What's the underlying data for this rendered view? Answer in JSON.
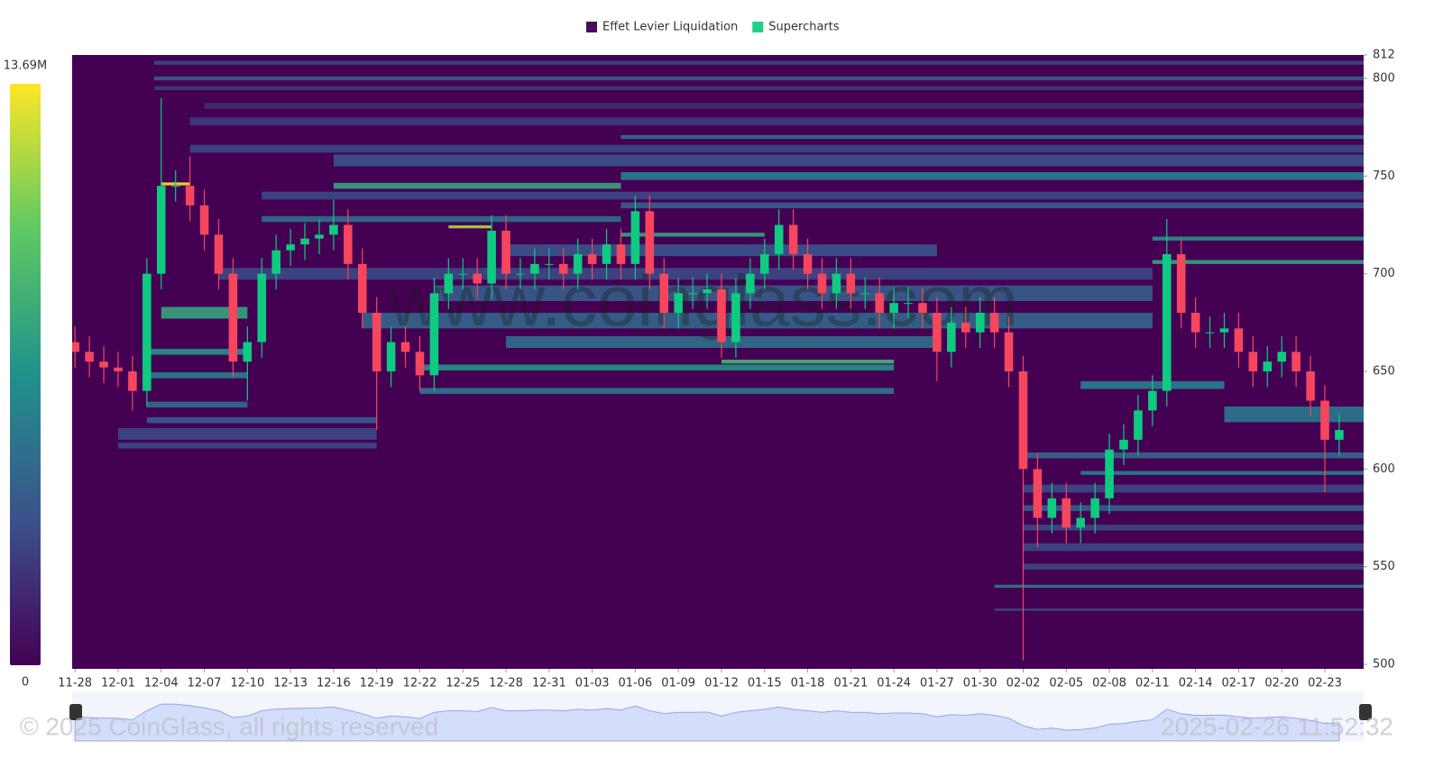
{
  "chart_data": {
    "type": "liquidation-heatmap",
    "legend": [
      {
        "name": "Effet Levier Liquidation",
        "color": "#4a0e5c"
      },
      {
        "name": "Supercharts",
        "color": "#1fcf8a"
      }
    ],
    "colorbar": {
      "max": {
        "value": 13690000,
        "label": "13.69M"
      },
      "min": 0
    },
    "colormap": [
      "#440154",
      "#3b528b",
      "#21918c",
      "#5ec962",
      "#fde725"
    ],
    "background": "#440154",
    "xlim": [
      -0.2,
      89.7
    ],
    "xticks": [
      {
        "value": 0,
        "label": "11-28"
      },
      {
        "value": 3,
        "label": "12-01"
      },
      {
        "value": 6,
        "label": "12-04"
      },
      {
        "value": 9,
        "label": "12-07"
      },
      {
        "value": 12,
        "label": "12-10"
      },
      {
        "value": 15,
        "label": "12-13"
      },
      {
        "value": 18,
        "label": "12-16"
      },
      {
        "value": 21,
        "label": "12-19"
      },
      {
        "value": 24,
        "label": "12-22"
      },
      {
        "value": 27,
        "label": "12-25"
      },
      {
        "value": 30,
        "label": "12-28"
      },
      {
        "value": 33,
        "label": "12-31"
      },
      {
        "value": 36,
        "label": "01-03"
      },
      {
        "value": 39,
        "label": "01-06"
      },
      {
        "value": 42,
        "label": "01-09"
      },
      {
        "value": 45,
        "label": "01-12"
      },
      {
        "value": 48,
        "label": "01-15"
      },
      {
        "value": 51,
        "label": "01-18"
      },
      {
        "value": 54,
        "label": "01-21"
      },
      {
        "value": 57,
        "label": "01-24"
      },
      {
        "value": 60,
        "label": "01-27"
      },
      {
        "value": 63,
        "label": "01-30"
      },
      {
        "value": 66,
        "label": "02-02"
      },
      {
        "value": 69,
        "label": "02-05"
      },
      {
        "value": 72,
        "label": "02-08"
      },
      {
        "value": 75,
        "label": "02-11"
      },
      {
        "value": 78,
        "label": "02-14"
      },
      {
        "value": 81,
        "label": "02-17"
      },
      {
        "value": 84,
        "label": "02-20"
      },
      {
        "value": 87,
        "label": "02-23"
      }
    ],
    "ylim": [
      497.7,
      812
    ],
    "yticks": [
      500,
      550,
      600,
      650,
      700,
      750,
      800,
      812
    ],
    "levels": [
      [
        808,
        2,
        5.5,
        89.7,
        3000000
      ],
      [
        800,
        2,
        5.5,
        89.7,
        4000000
      ],
      [
        795,
        2,
        5.5,
        89.7,
        2500000
      ],
      [
        786,
        3,
        9,
        89.7,
        2000000
      ],
      [
        778,
        4,
        8,
        89.7,
        2500000
      ],
      [
        770,
        2,
        38,
        89.7,
        5000000
      ],
      [
        764,
        4,
        8,
        89.7,
        3000000
      ],
      [
        758,
        6,
        18,
        89.7,
        3500000
      ],
      [
        750,
        4,
        38,
        89.7,
        6000000
      ],
      [
        745,
        3,
        18,
        38,
        8000000
      ],
      [
        746,
        1.5,
        6,
        8,
        13690000
      ],
      [
        740,
        4,
        13,
        89.7,
        3000000
      ],
      [
        735,
        3,
        38,
        89.7,
        4000000
      ],
      [
        728,
        3,
        13,
        38,
        5000000
      ],
      [
        724,
        1.5,
        26,
        29,
        12000000
      ],
      [
        720,
        2,
        38,
        48,
        8000000
      ],
      [
        718,
        2,
        75,
        89.7,
        7000000
      ],
      [
        712,
        6,
        30,
        60,
        3500000
      ],
      [
        706,
        2,
        75,
        89.7,
        8000000
      ],
      [
        700,
        6,
        10,
        75,
        3000000
      ],
      [
        690,
        8,
        25,
        75,
        4000000
      ],
      [
        680,
        6,
        6,
        12,
        8000000
      ],
      [
        676,
        8,
        20,
        75,
        4500000
      ],
      [
        665,
        6,
        30,
        60,
        5000000
      ],
      [
        660,
        3,
        5,
        12,
        7000000
      ],
      [
        655,
        2,
        45,
        57,
        9000000
      ],
      [
        652,
        3,
        24,
        57,
        7000000
      ],
      [
        648,
        3,
        5,
        12,
        6000000
      ],
      [
        643,
        4,
        70,
        80,
        6000000
      ],
      [
        640,
        3,
        24,
        57,
        5500000
      ],
      [
        633,
        3,
        5,
        12,
        5000000
      ],
      [
        628,
        8,
        80,
        89.7,
        5500000
      ],
      [
        625,
        3,
        5,
        21,
        4000000
      ],
      [
        618,
        6,
        3,
        21,
        3000000
      ],
      [
        612,
        3,
        3,
        21,
        3000000
      ],
      [
        607,
        3,
        66,
        89.7,
        4500000
      ],
      [
        598,
        2,
        70,
        89.7,
        6000000
      ],
      [
        590,
        4,
        66,
        89.7,
        3000000
      ],
      [
        580,
        3,
        66,
        89.7,
        4000000
      ],
      [
        570,
        3,
        66,
        89.7,
        3000000
      ],
      [
        560,
        4,
        66,
        89.7,
        3000000
      ],
      [
        550,
        3,
        66,
        89.7,
        3000000
      ],
      [
        540,
        1.5,
        64,
        89.7,
        6000000
      ],
      [
        528,
        1,
        64,
        89.7,
        3500000
      ]
    ],
    "up_color": "#0ecb81",
    "down_color": "#f6465d",
    "candles": {
      "x": [
        0,
        1,
        2,
        3,
        4,
        5,
        6,
        7,
        8,
        9,
        10,
        11,
        12,
        13,
        14,
        15,
        16,
        17,
        18,
        19,
        20,
        21,
        22,
        23,
        24,
        25,
        26,
        27,
        28,
        29,
        30,
        31,
        32,
        33,
        34,
        35,
        36,
        37,
        38,
        39,
        40,
        41,
        42,
        43,
        44,
        45,
        46,
        47,
        48,
        49,
        50,
        51,
        52,
        53,
        54,
        55,
        56,
        57,
        58,
        59,
        60,
        61,
        62,
        63,
        64,
        65,
        66,
        67,
        68,
        69,
        70,
        71,
        72,
        73,
        74,
        75,
        76,
        77,
        78,
        79,
        80,
        81,
        82,
        83,
        84,
        85,
        86,
        87,
        88
      ],
      "open": [
        665,
        660,
        655,
        652,
        650,
        640,
        700,
        745,
        745,
        735,
        720,
        700,
        655,
        665,
        700,
        712,
        715,
        718,
        720,
        725,
        705,
        680,
        650,
        665,
        660,
        648,
        690,
        700,
        700,
        695,
        722,
        700,
        700,
        705,
        705,
        700,
        710,
        705,
        715,
        705,
        732,
        700,
        680,
        690,
        690,
        692,
        665,
        690,
        700,
        710,
        725,
        710,
        700,
        690,
        700,
        690,
        690,
        680,
        685,
        685,
        680,
        660,
        675,
        670,
        680,
        670,
        650,
        600,
        575,
        585,
        570,
        575,
        585,
        610,
        615,
        630,
        640,
        710,
        680,
        670,
        670,
        672,
        660,
        650,
        655,
        660,
        650,
        635,
        615
      ],
      "high": [
        673,
        668,
        663,
        660,
        658,
        708,
        790,
        753,
        760,
        743,
        728,
        708,
        673,
        708,
        720,
        723,
        726,
        728,
        738,
        733,
        713,
        688,
        673,
        673,
        668,
        698,
        708,
        708,
        708,
        730,
        730,
        708,
        713,
        713,
        713,
        718,
        718,
        723,
        723,
        740,
        740,
        708,
        698,
        698,
        700,
        700,
        698,
        708,
        718,
        733,
        733,
        718,
        708,
        708,
        708,
        698,
        698,
        693,
        693,
        693,
        688,
        683,
        683,
        688,
        688,
        678,
        658,
        608,
        593,
        593,
        583,
        593,
        618,
        623,
        638,
        648,
        728,
        718,
        688,
        678,
        680,
        680,
        668,
        663,
        668,
        668,
        658,
        643,
        628
      ],
      "low": [
        652,
        647,
        644,
        642,
        630,
        632,
        692,
        737,
        727,
        712,
        692,
        647,
        635,
        657,
        692,
        704,
        707,
        710,
        712,
        697,
        672,
        620,
        642,
        652,
        640,
        640,
        682,
        692,
        687,
        687,
        692,
        692,
        692,
        697,
        692,
        692,
        697,
        697,
        697,
        697,
        692,
        672,
        672,
        682,
        682,
        657,
        657,
        682,
        692,
        702,
        702,
        692,
        682,
        682,
        682,
        682,
        672,
        672,
        677,
        672,
        645,
        652,
        662,
        662,
        662,
        642,
        502,
        560,
        567,
        562,
        562,
        567,
        577,
        602,
        607,
        622,
        632,
        672,
        662,
        662,
        662,
        652,
        642,
        642,
        647,
        642,
        627,
        588,
        607
      ],
      "close": [
        660,
        655,
        652,
        650,
        640,
        700,
        745,
        745,
        735,
        720,
        700,
        655,
        665,
        700,
        712,
        715,
        718,
        720,
        725,
        705,
        680,
        650,
        665,
        660,
        648,
        690,
        700,
        700,
        695,
        722,
        700,
        700,
        705,
        705,
        700,
        710,
        705,
        715,
        705,
        732,
        700,
        680,
        690,
        690,
        692,
        665,
        690,
        700,
        710,
        725,
        710,
        700,
        690,
        700,
        690,
        690,
        680,
        685,
        685,
        680,
        660,
        675,
        670,
        680,
        670,
        650,
        600,
        575,
        585,
        570,
        575,
        585,
        610,
        615,
        630,
        640,
        710,
        680,
        670,
        670,
        672,
        660,
        650,
        655,
        660,
        650,
        635,
        615,
        620
      ]
    },
    "watermark": "www.coinglass.com",
    "copyright": "© 2025 CoinGlass, all rights reserved",
    "timestamp": "2025-02-26 11:52:32"
  }
}
